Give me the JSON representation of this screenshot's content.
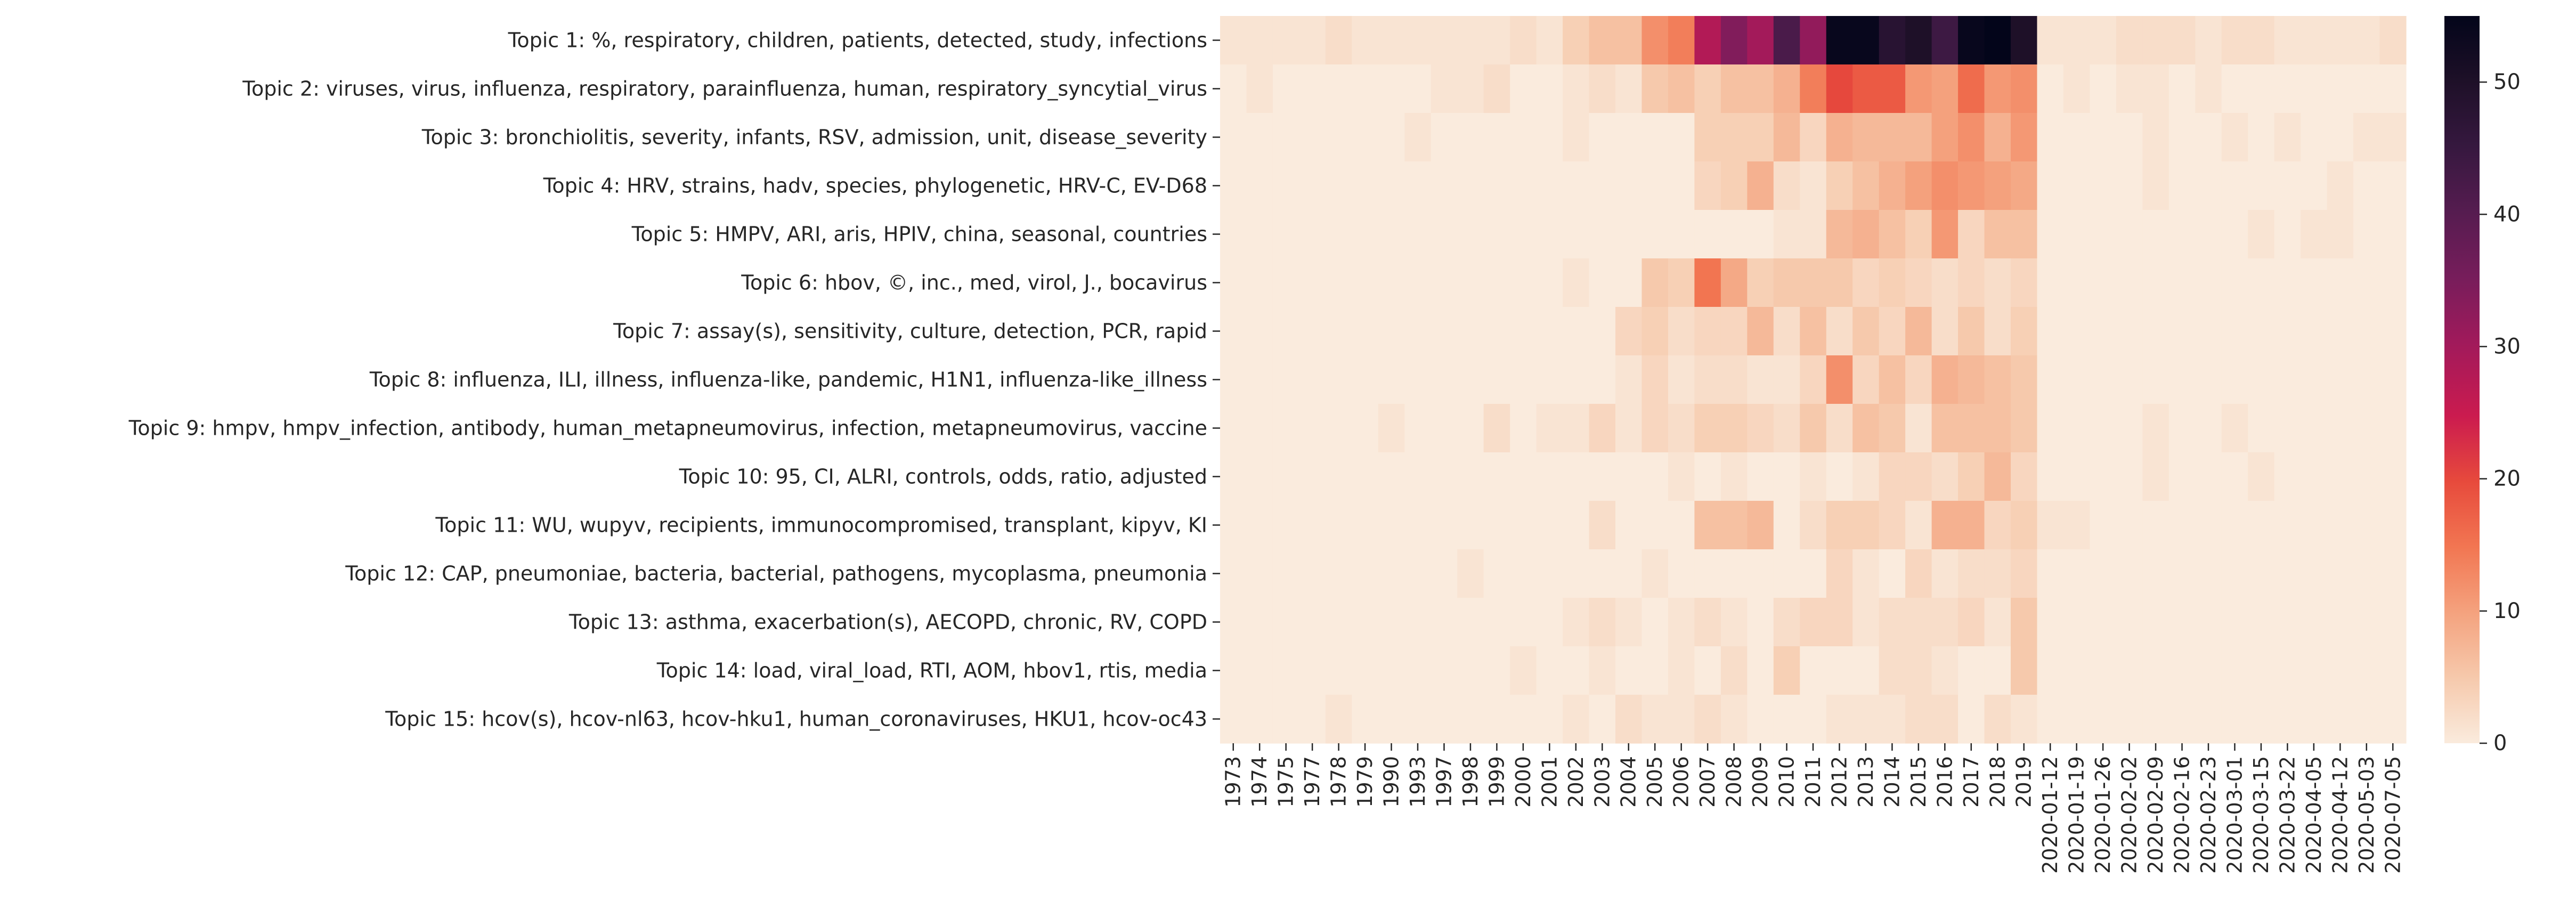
{
  "chart_data": {
    "type": "heatmap",
    "colormap": "rocket_r",
    "title": "",
    "xlabel": "",
    "ylabel": "",
    "value_range": [
      0,
      55
    ],
    "colorbar_ticks": [
      0,
      10,
      20,
      30,
      40,
      50
    ],
    "colorbar_tick_labels": [
      "0",
      "10",
      "20",
      "30",
      "40",
      "50"
    ],
    "rows": [
      "Topic 1: %, respiratory, children, patients, detected, study, infections",
      "Topic 2: viruses, virus, influenza, respiratory, parainfluenza, human, respiratory_syncytial_virus",
      "Topic 3: bronchiolitis, severity, infants, RSV, admission, unit, disease_severity",
      "Topic 4: HRV, strains, hadv, species, phylogenetic, HRV-C, EV-D68",
      "Topic 5: HMPV, ARI, aris, HPIV, china, seasonal, countries",
      "Topic 6: hbov, ©, inc., med, virol, J., bocavirus",
      "Topic 7: assay(s), sensitivity, culture, detection, PCR, rapid",
      "Topic 8: influenza, ILI, illness, influenza-like, pandemic, H1N1, influenza-like_illness",
      "Topic 9: hmpv, hmpv_infection, antibody, human_metapneumovirus, infection, metapneumovirus, vaccine",
      "Topic 10: 95, CI, ALRI, controls, odds, ratio, adjusted",
      "Topic 11: WU, wupyv, recipients, immunocompromised, transplant, kipyv, KI",
      "Topic 12: CAP, pneumoniae, bacteria, bacterial, pathogens, mycoplasma, pneumonia",
      "Topic 13: asthma, exacerbation(s), AECOPD, chronic, RV, COPD",
      "Topic 14: load, viral_load, RTI, AOM, hbov1, rtis, media",
      "Topic 15: hcov(s), hcov-nl63, hcov-hku1, human_coronaviruses, HKU1, hcov-oc43"
    ],
    "columns": [
      "1973",
      "1974",
      "1975",
      "1977",
      "1978",
      "1979",
      "1990",
      "1993",
      "1997",
      "1998",
      "1999",
      "2000",
      "2001",
      "2002",
      "2003",
      "2004",
      "2005",
      "2006",
      "2007",
      "2008",
      "2009",
      "2010",
      "2011",
      "2012",
      "2013",
      "2014",
      "2015",
      "2016",
      "2017",
      "2018",
      "2019",
      "2020-01-12",
      "2020-01-19",
      "2020-01-26",
      "2020-02-02",
      "2020-02-09",
      "2020-02-16",
      "2020-02-23",
      "2020-03-01",
      "2020-03-15",
      "2020-03-22",
      "2020-04-05",
      "2020-04-12",
      "2020-05-03",
      "2020-07-05"
    ],
    "values": [
      [
        1,
        1,
        1,
        1,
        2,
        1,
        1,
        1,
        1,
        1,
        1,
        2,
        1,
        4,
        6,
        6,
        12,
        14,
        28,
        34,
        30,
        42,
        32,
        54,
        54,
        48,
        50,
        44,
        54,
        57,
        50,
        1,
        1,
        1,
        2,
        2,
        2,
        1,
        2,
        2,
        1,
        1,
        1,
        1,
        2
      ],
      [
        0,
        1,
        0,
        0,
        0,
        0,
        0,
        0,
        1,
        1,
        2,
        0,
        0,
        1,
        2,
        1,
        5,
        6,
        4,
        6,
        6,
        8,
        14,
        20,
        18,
        18,
        11,
        10,
        16,
        11,
        12,
        0,
        1,
        0,
        1,
        1,
        0,
        1,
        0,
        0,
        0,
        0,
        0,
        0,
        0
      ],
      [
        0,
        0,
        0,
        0,
        0,
        0,
        0,
        1,
        0,
        0,
        0,
        0,
        0,
        1,
        0,
        0,
        0,
        0,
        4,
        4,
        4,
        7,
        3,
        8,
        7,
        7,
        7,
        10,
        12,
        8,
        11,
        0,
        0,
        0,
        0,
        1,
        0,
        0,
        1,
        0,
        1,
        0,
        0,
        1,
        1
      ],
      [
        0,
        0,
        0,
        0,
        0,
        0,
        0,
        0,
        0,
        0,
        0,
        0,
        0,
        0,
        0,
        0,
        0,
        0,
        3,
        4,
        8,
        2,
        1,
        4,
        6,
        8,
        10,
        12,
        11,
        10,
        9,
        0,
        0,
        0,
        0,
        1,
        0,
        0,
        0,
        0,
        0,
        0,
        1,
        0,
        0
      ],
      [
        0,
        0,
        0,
        0,
        0,
        0,
        0,
        0,
        0,
        0,
        0,
        0,
        0,
        0,
        0,
        0,
        0,
        0,
        0,
        0,
        0,
        1,
        1,
        7,
        8,
        6,
        4,
        11,
        3,
        6,
        6,
        0,
        0,
        0,
        0,
        0,
        0,
        0,
        0,
        1,
        0,
        1,
        1,
        0,
        0
      ],
      [
        0,
        0,
        0,
        0,
        0,
        0,
        0,
        0,
        0,
        0,
        0,
        0,
        0,
        1,
        0,
        0,
        5,
        4,
        15,
        9,
        4,
        5,
        5,
        5,
        3,
        4,
        3,
        2,
        3,
        2,
        3,
        0,
        0,
        0,
        0,
        0,
        0,
        0,
        0,
        0,
        0,
        0,
        0,
        0,
        0
      ],
      [
        0,
        0,
        0,
        0,
        0,
        0,
        0,
        0,
        0,
        0,
        0,
        0,
        0,
        0,
        0,
        3,
        4,
        2,
        3,
        3,
        7,
        2,
        6,
        2,
        5,
        3,
        7,
        2,
        5,
        2,
        4,
        0,
        0,
        0,
        0,
        0,
        0,
        0,
        0,
        0,
        0,
        0,
        0,
        0,
        0
      ],
      [
        0,
        0,
        0,
        0,
        0,
        0,
        0,
        0,
        0,
        0,
        0,
        0,
        0,
        0,
        0,
        1,
        3,
        1,
        2,
        2,
        1,
        1,
        3,
        12,
        3,
        6,
        3,
        8,
        7,
        6,
        5,
        0,
        0,
        0,
        0,
        0,
        0,
        0,
        0,
        0,
        0,
        0,
        0,
        0,
        0
      ],
      [
        0,
        0,
        0,
        0,
        0,
        0,
        1,
        0,
        0,
        0,
        2,
        0,
        1,
        1,
        3,
        1,
        3,
        2,
        4,
        4,
        3,
        2,
        5,
        2,
        6,
        5,
        1,
        6,
        6,
        6,
        5,
        0,
        0,
        0,
        0,
        1,
        0,
        0,
        1,
        0,
        0,
        0,
        0,
        0,
        0
      ],
      [
        0,
        0,
        0,
        0,
        0,
        0,
        0,
        0,
        0,
        0,
        0,
        0,
        0,
        0,
        0,
        0,
        0,
        1,
        0,
        1,
        0,
        0,
        1,
        0,
        1,
        3,
        3,
        2,
        4,
        7,
        3,
        0,
        0,
        0,
        0,
        1,
        0,
        0,
        0,
        1,
        0,
        0,
        0,
        0,
        0
      ],
      [
        0,
        0,
        0,
        0,
        0,
        0,
        0,
        0,
        0,
        0,
        0,
        0,
        0,
        0,
        2,
        0,
        0,
        0,
        6,
        6,
        7,
        0,
        2,
        4,
        4,
        3,
        1,
        8,
        8,
        3,
        4,
        1,
        1,
        0,
        0,
        0,
        0,
        0,
        0,
        0,
        0,
        0,
        0,
        0,
        0
      ],
      [
        0,
        0,
        0,
        0,
        0,
        0,
        0,
        0,
        0,
        1,
        0,
        0,
        0,
        0,
        0,
        0,
        1,
        0,
        0,
        0,
        0,
        0,
        0,
        3,
        1,
        0,
        3,
        1,
        2,
        2,
        3,
        0,
        0,
        0,
        0,
        0,
        0,
        0,
        0,
        0,
        0,
        0,
        0,
        0,
        0
      ],
      [
        0,
        0,
        0,
        0,
        0,
        0,
        0,
        0,
        0,
        0,
        0,
        0,
        0,
        1,
        2,
        1,
        0,
        1,
        2,
        1,
        0,
        2,
        3,
        3,
        1,
        2,
        2,
        2,
        3,
        1,
        5,
        0,
        0,
        0,
        0,
        0,
        0,
        0,
        0,
        0,
        0,
        0,
        0,
        0,
        0
      ],
      [
        0,
        0,
        0,
        0,
        0,
        0,
        0,
        0,
        0,
        0,
        0,
        1,
        0,
        0,
        1,
        0,
        0,
        1,
        0,
        2,
        0,
        4,
        0,
        0,
        0,
        2,
        2,
        1,
        0,
        0,
        5,
        0,
        0,
        0,
        0,
        0,
        0,
        0,
        0,
        0,
        0,
        0,
        0,
        0,
        0
      ],
      [
        0,
        0,
        0,
        0,
        1,
        0,
        0,
        0,
        0,
        0,
        0,
        0,
        0,
        1,
        0,
        2,
        1,
        1,
        2,
        1,
        0,
        0,
        0,
        1,
        1,
        1,
        2,
        2,
        0,
        2,
        1,
        0,
        0,
        0,
        0,
        0,
        0,
        0,
        0,
        0,
        0,
        0,
        0,
        0,
        0
      ]
    ]
  }
}
